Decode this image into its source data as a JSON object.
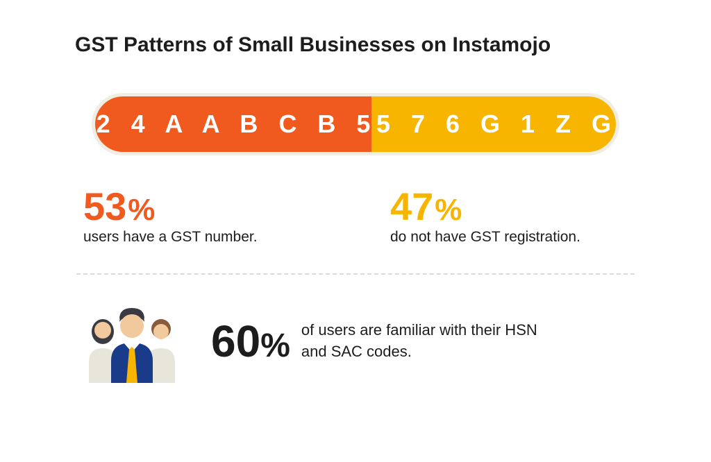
{
  "title": "GST Patterns of Small Businesses on Instamojo",
  "pill": {
    "left_text": "2 4 A A B C B 5",
    "right_text": "5 7 6 G 1 Z G",
    "left_pct": 53,
    "right_pct": 47,
    "left_color": "#f05a1f",
    "right_color": "#f7b500",
    "bg_color": "#f0ede3",
    "text_color": "#ffffff",
    "font_size": 36,
    "letter_spacing": 10
  },
  "stat_left": {
    "value": "53",
    "pct_symbol": "%",
    "caption": "users have a GST number.",
    "color": "#f05a1f"
  },
  "stat_right": {
    "value": "47",
    "pct_symbol": "%",
    "caption": "do not have GST registration.",
    "color": "#f7b500"
  },
  "bottom": {
    "value": "60",
    "pct_symbol": "%",
    "line1": "of users are familiar with their HSN",
    "line2": "and SAC codes.",
    "value_color": "#1d1d1d"
  },
  "people_icon": {
    "skin": "#f2c89d",
    "hair_dark": "#3a3a42",
    "hair_brown": "#8a5a3a",
    "suit": "#1a3a8a",
    "tie": "#f7b500",
    "shirt": "#ffffff",
    "side_shirt": "#e8e5da"
  },
  "divider_color": "#d9d9d9",
  "title_color": "#1d1d1d",
  "caption_color": "#1d1d1d",
  "background": "#ffffff"
}
